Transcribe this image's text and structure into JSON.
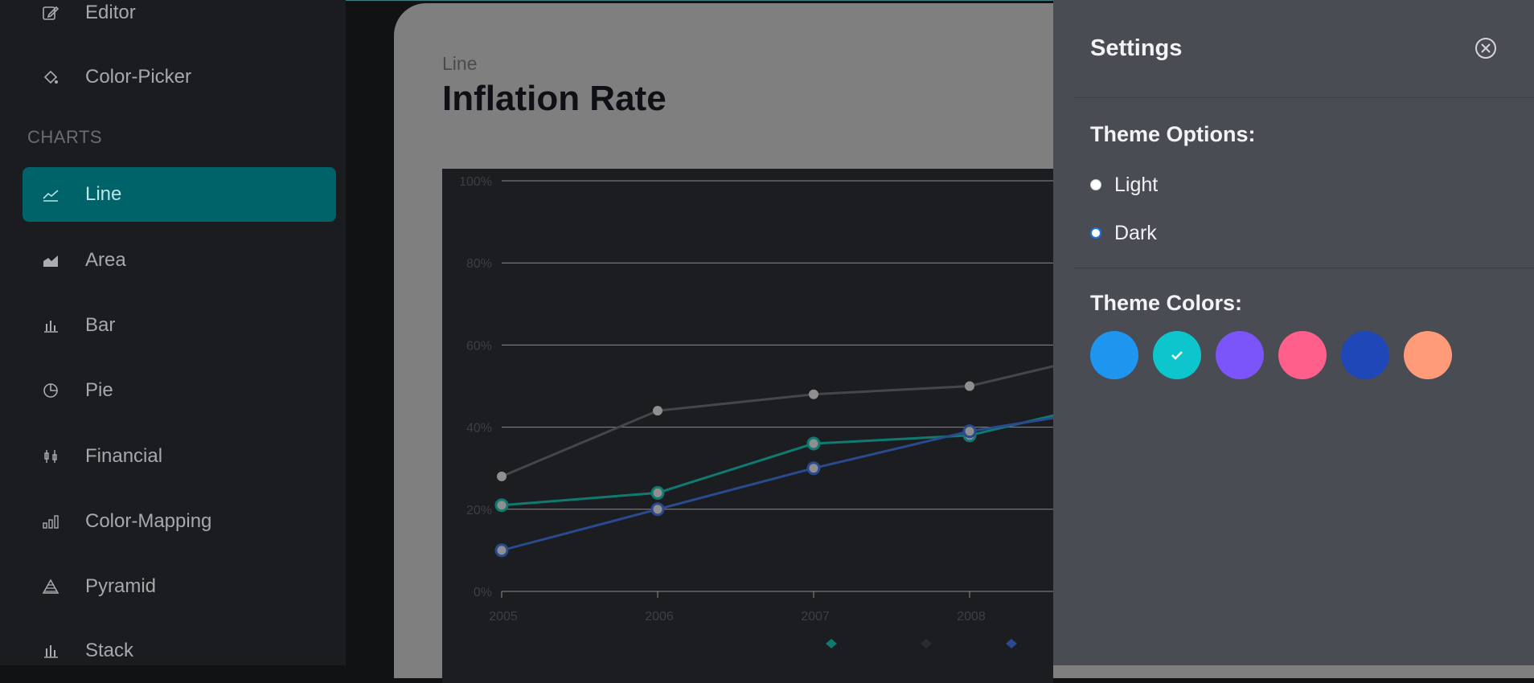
{
  "sidebar": {
    "items_top": [
      {
        "label": "Editor",
        "icon": "edit-icon"
      },
      {
        "label": "Color-Picker",
        "icon": "paint-bucket-icon"
      }
    ],
    "section_label": "CHARTS",
    "items": [
      {
        "label": "Line",
        "icon": "line-chart-icon",
        "active": true
      },
      {
        "label": "Area",
        "icon": "area-chart-icon"
      },
      {
        "label": "Bar",
        "icon": "bar-chart-icon"
      },
      {
        "label": "Pie",
        "icon": "pie-chart-icon"
      },
      {
        "label": "Financial",
        "icon": "candlestick-icon"
      },
      {
        "label": "Color-Mapping",
        "icon": "ascending-bars-icon"
      },
      {
        "label": "Pyramid",
        "icon": "pyramid-icon"
      },
      {
        "label": "Stack",
        "icon": "stacked-bar-icon"
      }
    ]
  },
  "main": {
    "subtitle": "Line",
    "title": "Inflation Rate"
  },
  "chart_data": {
    "type": "line",
    "x": [
      "2005",
      "2006",
      "2007",
      "2008"
    ],
    "yticks": [
      "0%",
      "20%",
      "40%",
      "60%",
      "80%",
      "100%"
    ],
    "ylim": [
      0,
      100
    ],
    "grid": true,
    "series": [
      {
        "color": "#444649",
        "values": [
          28,
          44,
          48,
          50
        ],
        "partial_next": 59
      },
      {
        "color": "#0f7a70",
        "values": [
          21,
          24,
          36,
          38
        ],
        "partial_next": 47
      },
      {
        "color": "#2a4a8f",
        "values": [
          10,
          20,
          30,
          39
        ],
        "partial_next": 45
      }
    ],
    "legend_colors": [
      "#0f7a70",
      "#2a2b2e",
      "#2a4a8f"
    ]
  },
  "settings": {
    "title": "Settings",
    "theme_options_title": "Theme Options:",
    "options": [
      {
        "label": "Light",
        "checked": false
      },
      {
        "label": "Dark",
        "checked": true
      }
    ],
    "theme_colors_title": "Theme Colors:",
    "colors": [
      "#1e96f0",
      "#0dc5cd",
      "#7b55fa",
      "#ff5f8b",
      "#1f47b8",
      "#ff9b79"
    ],
    "selected_color_index": 1
  }
}
